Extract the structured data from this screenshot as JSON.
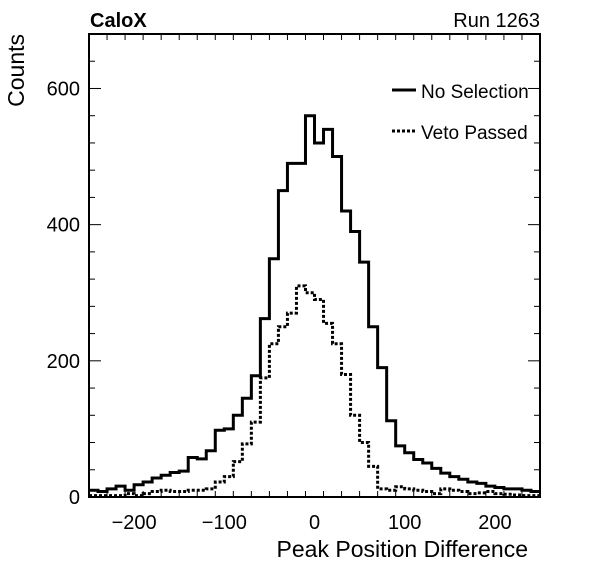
{
  "header": {
    "experiment": "CaloX",
    "run": "Run 1263"
  },
  "chart_data": {
    "type": "histogram",
    "title": "",
    "xlabel": "Peak Position Difference",
    "ylabel": "Counts",
    "xlim": [
      -250,
      250
    ],
    "ylim": [
      0,
      680
    ],
    "bin_width": 10,
    "x_ticks": [
      -200,
      -100,
      0,
      100,
      200
    ],
    "x_tick_labels": [
      "−200",
      "−100",
      "0",
      "100",
      "200"
    ],
    "y_ticks": [
      0,
      200,
      400,
      600
    ],
    "y_tick_labels": [
      "0",
      "200",
      "400",
      "600"
    ],
    "grid": false,
    "legend_position": "top-right",
    "bin_edges_start": -250,
    "series": [
      {
        "name": "No Selection",
        "style": "solid",
        "color": "#000000",
        "values": [
          10,
          8,
          12,
          16,
          10,
          18,
          22,
          28,
          32,
          36,
          38,
          58,
          56,
          68,
          98,
          100,
          120,
          145,
          178,
          262,
          350,
          450,
          490,
          490,
          560,
          520,
          540,
          500,
          420,
          390,
          345,
          250,
          190,
          112,
          75,
          65,
          55,
          50,
          42,
          35,
          30,
          26,
          22,
          20,
          16,
          14,
          12,
          12,
          10,
          8
        ]
      },
      {
        "name": "Veto Passed",
        "style": "dotted",
        "color": "#000000",
        "values": [
          2,
          2,
          2,
          2,
          5,
          2,
          5,
          8,
          10,
          8,
          8,
          10,
          10,
          12,
          22,
          30,
          52,
          78,
          110,
          175,
          225,
          250,
          270,
          310,
          300,
          290,
          255,
          225,
          180,
          120,
          80,
          45,
          12,
          10,
          15,
          12,
          10,
          8,
          5,
          12,
          10,
          8,
          5,
          6,
          8,
          5,
          4,
          3,
          2,
          2
        ]
      }
    ]
  }
}
